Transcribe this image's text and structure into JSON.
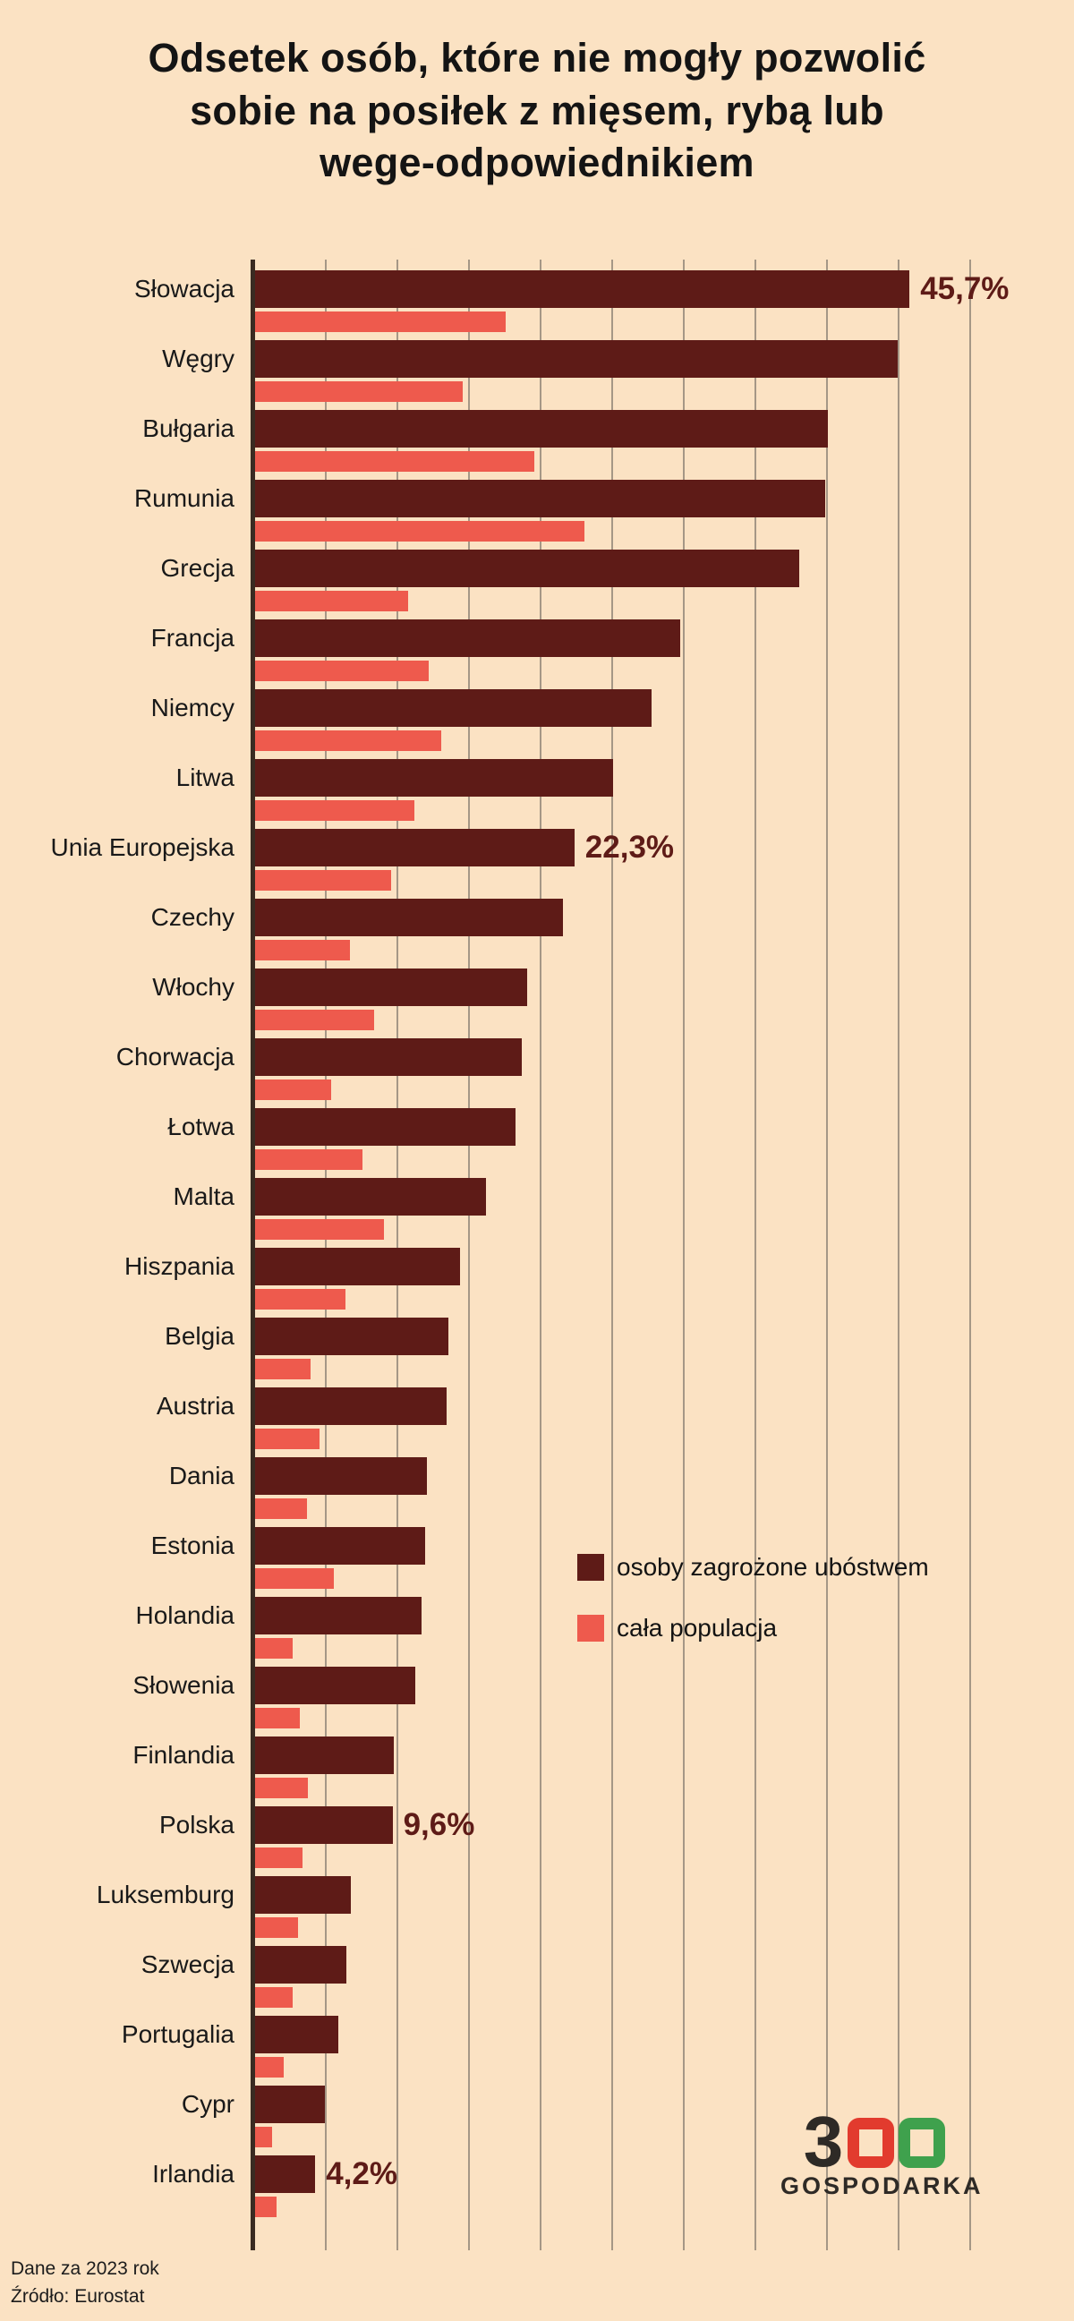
{
  "title": "Odsetek osób, które nie mogły pozwolić sobie na posiłek z mięsem, rybą lub wege-odpowiednikiem",
  "title_lines": [
    "Odsetek osób, które nie mogły pozwolić",
    "sobie na posiłek z mięsem, rybą lub",
    "wege-odpowiednikiem"
  ],
  "colors": {
    "background": "#fbe2c3",
    "bar_poverty": "#5e1b17",
    "bar_population": "#ee5a4d",
    "grid": "#a59786",
    "axis": "#3a2b22",
    "text": "#141414"
  },
  "legend": [
    {
      "label": "osoby zagrożone ubóstwem",
      "color": "#5e1b17"
    },
    {
      "label": "cała populacja",
      "color": "#ee5a4d"
    }
  ],
  "footer": {
    "line1": "Dane za 2023 rok",
    "line2": "Źródło: Eurostat"
  },
  "logo": {
    "three": "3",
    "subtext": "GOSPODARKA"
  },
  "chart_data": {
    "type": "bar",
    "orientation": "horizontal",
    "title": "Odsetek osób, które nie mogły pozwolić sobie na posiłek z mięsem, rybą lub wege-odpowiednikiem",
    "xlim": [
      0,
      50
    ],
    "grid_step": 5,
    "grid": true,
    "legend_position": "middle-right",
    "categories": [
      "Słowacja",
      "Węgry",
      "Bułgaria",
      "Rumunia",
      "Grecja",
      "Francja",
      "Niemcy",
      "Litwa",
      "Unia Europejska",
      "Czechy",
      "Włochy",
      "Chorwacja",
      "Łotwa",
      "Malta",
      "Hiszpania",
      "Belgia",
      "Austria",
      "Dania",
      "Estonia",
      "Holandia",
      "Słowenia",
      "Finlandia",
      "Polska",
      "Luksemburg",
      "Szwecja",
      "Portugalia",
      "Cypr",
      "Irlandia"
    ],
    "series": [
      {
        "name": "osoby zagrożone ubóstwem",
        "color": "#5e1b17",
        "values": [
          45.7,
          44.9,
          40.0,
          39.8,
          38.0,
          29.7,
          27.7,
          25.0,
          22.3,
          21.5,
          19.0,
          18.6,
          18.2,
          16.1,
          14.3,
          13.5,
          13.4,
          12.0,
          11.9,
          11.6,
          11.2,
          9.7,
          9.6,
          6.7,
          6.4,
          5.8,
          4.9,
          4.2
        ]
      },
      {
        "name": "cała populacja",
        "color": "#ee5a4d",
        "values": [
          17.5,
          14.5,
          19.5,
          23.0,
          10.7,
          12.1,
          13.0,
          11.1,
          9.5,
          6.6,
          8.3,
          5.3,
          7.5,
          9.0,
          6.3,
          3.9,
          4.5,
          3.6,
          5.5,
          2.6,
          3.1,
          3.7,
          3.3,
          3.0,
          2.6,
          2.0,
          1.2,
          1.5
        ]
      }
    ],
    "annotations": [
      {
        "index": 0,
        "category": "Słowacja",
        "series": 0,
        "label": "45,7%"
      },
      {
        "index": 8,
        "category": "Unia Europejska",
        "series": 0,
        "label": "22,3%"
      },
      {
        "index": 22,
        "category": "Polska",
        "series": 0,
        "label": "9,6%"
      },
      {
        "index": 27,
        "category": "Irlandia",
        "series": 0,
        "label": "4,2%"
      }
    ]
  }
}
